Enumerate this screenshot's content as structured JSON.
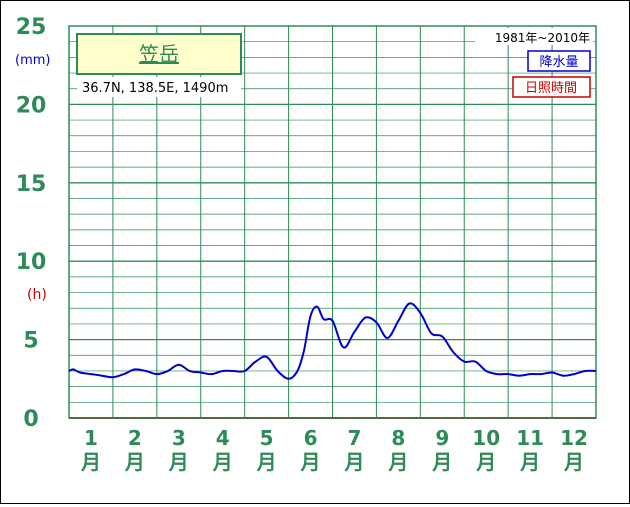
{
  "chart_data": {
    "type": "line",
    "title": "笠岳",
    "location": "36.7N, 138.5E, 1490m",
    "period": "1981年~2010年",
    "legend": [
      {
        "label": "降水量",
        "color": "#0000cc"
      },
      {
        "label": "日照時間",
        "color": "#cc0000"
      }
    ],
    "y_unit_precip": "(mm)",
    "y_unit_sun": "(h)",
    "yticks": [
      "0",
      "5",
      "10",
      "15",
      "20",
      "25"
    ],
    "ylim": [
      0,
      25
    ],
    "xlim": [
      1,
      13
    ],
    "month_numbers": [
      "1",
      "2",
      "3",
      "4",
      "5",
      "6",
      "7",
      "8",
      "9",
      "10",
      "11",
      "12"
    ],
    "month_char": "月",
    "grid": true,
    "series": [
      {
        "name": "降水量",
        "color": "#0000cc",
        "x": [
          1.0,
          1.1,
          1.25,
          1.5,
          1.75,
          2.0,
          2.25,
          2.5,
          2.75,
          3.0,
          3.25,
          3.5,
          3.75,
          4.0,
          4.25,
          4.5,
          4.75,
          5.0,
          5.25,
          5.5,
          5.75,
          6.0,
          6.2,
          6.35,
          6.5,
          6.65,
          6.8,
          7.0,
          7.25,
          7.5,
          7.75,
          8.0,
          8.25,
          8.5,
          8.75,
          9.0,
          9.25,
          9.5,
          9.75,
          10.0,
          10.25,
          10.5,
          10.75,
          11.0,
          11.25,
          11.5,
          11.75,
          12.0,
          12.25,
          12.5,
          12.75,
          13.0
        ],
        "y": [
          3.0,
          3.1,
          2.9,
          2.8,
          2.7,
          2.6,
          2.8,
          3.1,
          3.0,
          2.8,
          3.0,
          3.4,
          3.0,
          2.9,
          2.8,
          3.0,
          3.0,
          3.0,
          3.6,
          3.9,
          3.0,
          2.5,
          3.0,
          4.3,
          6.5,
          7.1,
          6.3,
          6.2,
          4.5,
          5.5,
          6.4,
          6.1,
          5.1,
          6.2,
          7.3,
          6.7,
          5.4,
          5.2,
          4.2,
          3.6,
          3.6,
          3.0,
          2.8,
          2.8,
          2.7,
          2.8,
          2.8,
          2.9,
          2.7,
          2.8,
          3.0,
          3.0
        ]
      }
    ]
  }
}
